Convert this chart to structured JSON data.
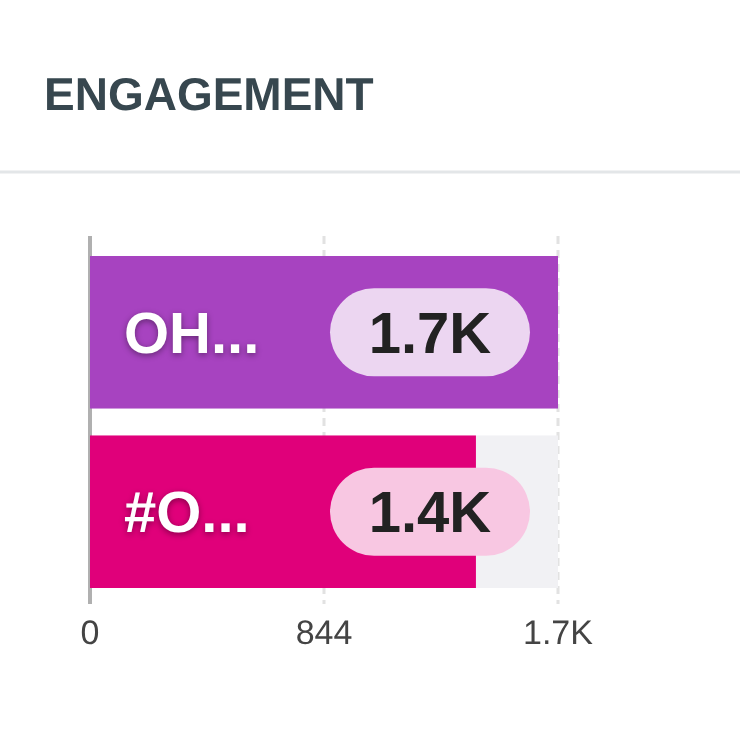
{
  "chart_data": {
    "type": "bar",
    "orientation": "horizontal",
    "title": "ENGAGEMENT",
    "categories": [
      "OH...",
      "#O..."
    ],
    "values": [
      1688,
      1392
    ],
    "colors": [
      "#a743c0",
      "#e0007a"
    ],
    "value_labels": [
      "1.7K",
      "1.4K"
    ],
    "xlim": [
      0,
      1688
    ],
    "xticks": [
      0,
      844,
      {
        "value": 1688,
        "label": "1.7K"
      }
    ],
    "grid": "x"
  }
}
